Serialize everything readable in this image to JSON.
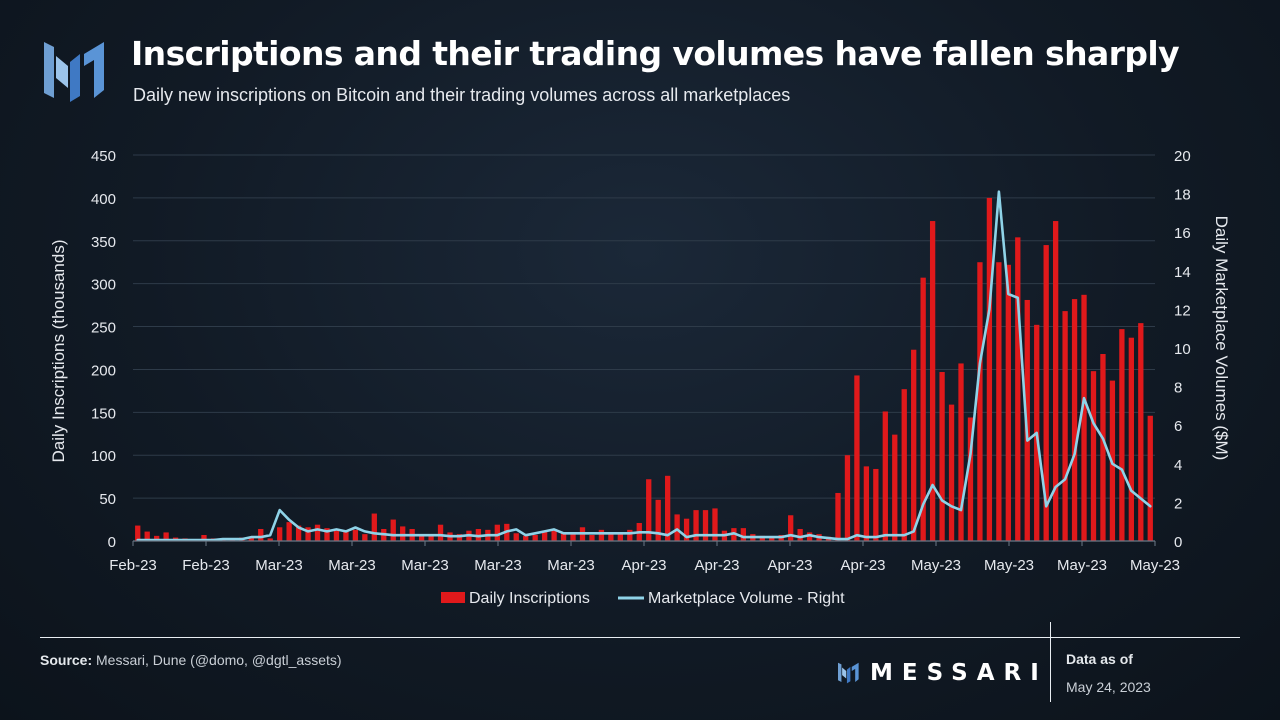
{
  "header": {
    "title": "Inscriptions and their trading volumes have fallen sharply",
    "subtitle": "Daily new inscriptions on Bitcoin and their trading volumes across all marketplaces",
    "logo_icon": "messari-logo-icon"
  },
  "footer": {
    "source_label": "Source:",
    "source_text": "Messari, Dune (@domo, @dgtl_assets)",
    "brand": "MESSARI",
    "data_as_of_label": "Data as of",
    "data_as_of_date": "May 24, 2023"
  },
  "colors": {
    "bars": "#e0191b",
    "line": "#8fd3e8",
    "grid": "#2e3b49",
    "text": "#e6e9ee"
  },
  "chart_data": {
    "type": "bar",
    "ylabel": "Daily Inscriptions (thousands)",
    "y2label": "Daily Marketplace Volumes ($M)",
    "ylim": [
      0,
      450
    ],
    "yticks": [
      "0",
      "50",
      "100",
      "150",
      "200",
      "250",
      "300",
      "350",
      "400",
      "450"
    ],
    "y2lim": [
      0,
      20
    ],
    "y2ticks": [
      "0",
      "2",
      "4",
      "6",
      "8",
      "10",
      "12",
      "14",
      "16",
      "18",
      "20"
    ],
    "xticks": [
      "Feb-23",
      "Feb-23",
      "Mar-23",
      "Mar-23",
      "Mar-23",
      "Mar-23",
      "Mar-23",
      "Apr-23",
      "Apr-23",
      "Apr-23",
      "Apr-23",
      "May-23",
      "May-23",
      "May-23",
      "May-23"
    ],
    "grid": true,
    "legend_position": "bottom",
    "series": [
      {
        "name": "Daily Inscriptions",
        "type": "bar",
        "axis": "left",
        "values": [
          18,
          11,
          6,
          10,
          4,
          3,
          2,
          7,
          3,
          2,
          3,
          4,
          5,
          14,
          3,
          16,
          22,
          18,
          16,
          19,
          15,
          14,
          12,
          13,
          8,
          32,
          14,
          25,
          17,
          14,
          8,
          6,
          19,
          10,
          8,
          12,
          14,
          13,
          19,
          20,
          9,
          6,
          7,
          12,
          14,
          10,
          8,
          16,
          7,
          13,
          10,
          9,
          13,
          21,
          72,
          48,
          76,
          31,
          26,
          36,
          36,
          38,
          12,
          15,
          15,
          8,
          6,
          4,
          7,
          30,
          14,
          10,
          8,
          5,
          56,
          100,
          193,
          87,
          84,
          151,
          124,
          177,
          223,
          307,
          373,
          197,
          159,
          207,
          144,
          325,
          400,
          325,
          322,
          354,
          281,
          252,
          345,
          373,
          268,
          282,
          287,
          198,
          218,
          187,
          247,
          237,
          254,
          146
        ]
      },
      {
        "name": "Marketplace Volume - Right",
        "type": "line",
        "axis": "right",
        "values": [
          0.05,
          0.05,
          0.05,
          0.05,
          0.05,
          0.05,
          0.05,
          0.05,
          0.05,
          0.1,
          0.1,
          0.1,
          0.2,
          0.2,
          0.3,
          1.6,
          1.1,
          0.7,
          0.5,
          0.6,
          0.5,
          0.6,
          0.5,
          0.7,
          0.5,
          0.4,
          0.35,
          0.3,
          0.3,
          0.3,
          0.3,
          0.3,
          0.3,
          0.25,
          0.25,
          0.3,
          0.25,
          0.3,
          0.3,
          0.5,
          0.6,
          0.3,
          0.4,
          0.5,
          0.6,
          0.4,
          0.4,
          0.4,
          0.4,
          0.4,
          0.4,
          0.4,
          0.4,
          0.45,
          0.45,
          0.4,
          0.3,
          0.6,
          0.2,
          0.3,
          0.3,
          0.3,
          0.3,
          0.4,
          0.2,
          0.2,
          0.2,
          0.2,
          0.2,
          0.3,
          0.2,
          0.3,
          0.2,
          0.15,
          0.1,
          0.1,
          0.3,
          0.2,
          0.2,
          0.3,
          0.3,
          0.3,
          0.5,
          1.9,
          2.9,
          2.1,
          1.8,
          1.6,
          4.5,
          9.2,
          12,
          18.1,
          12.8,
          12.6,
          5.2,
          5.6,
          1.8,
          2.8,
          3.2,
          4.5,
          7.4,
          6.1,
          5.3,
          4,
          3.7,
          2.6,
          2.2,
          1.8
        ]
      }
    ]
  }
}
